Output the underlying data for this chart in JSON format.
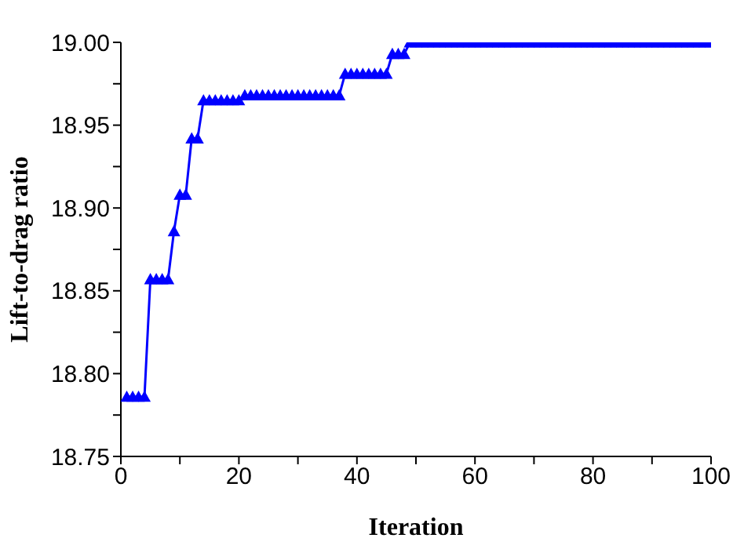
{
  "chart_data": {
    "type": "line",
    "xlabel": "Iteration",
    "ylabel": "Lift-to-drag ratio",
    "x": [
      1,
      2,
      3,
      4,
      5,
      6,
      7,
      8,
      9,
      10,
      11,
      12,
      13,
      14,
      15,
      16,
      17,
      18,
      19,
      20,
      21,
      22,
      23,
      24,
      25,
      26,
      27,
      28,
      29,
      30,
      31,
      32,
      33,
      34,
      35,
      36,
      37,
      38,
      39,
      40,
      41,
      42,
      43,
      44,
      45,
      46,
      47,
      48,
      49,
      50,
      51,
      52,
      53,
      54,
      55,
      56,
      57,
      58,
      59,
      60,
      61,
      62,
      63,
      64,
      65,
      66,
      67,
      68,
      69,
      70,
      71,
      72,
      73,
      74,
      75,
      76,
      77,
      78,
      79,
      80,
      81,
      82,
      83,
      84,
      85,
      86,
      87,
      88,
      89,
      90,
      91,
      92,
      93,
      94,
      95,
      96,
      97,
      98,
      99,
      100
    ],
    "series": [
      {
        "color": "#0000ff",
        "values": [
          18.786,
          18.786,
          18.786,
          18.786,
          18.857,
          18.857,
          18.857,
          18.857,
          18.886,
          18.908,
          18.908,
          18.942,
          18.942,
          18.965,
          18.965,
          18.965,
          18.965,
          18.965,
          18.965,
          18.965,
          18.968,
          18.968,
          18.968,
          18.968,
          18.968,
          18.968,
          18.968,
          18.968,
          18.968,
          18.968,
          18.968,
          18.968,
          18.968,
          18.968,
          18.968,
          18.968,
          18.968,
          18.981,
          18.981,
          18.981,
          18.981,
          18.981,
          18.981,
          18.981,
          18.981,
          18.993,
          18.993,
          18.993,
          19.0,
          19.0,
          19.0,
          19.0,
          19.0,
          19.0,
          19.0,
          19.0,
          19.0,
          19.0,
          19.0,
          19.0,
          19.0,
          19.0,
          19.0,
          19.0,
          19.0,
          19.0,
          19.0,
          19.0,
          19.0,
          19.0,
          19.0,
          19.0,
          19.0,
          19.0,
          19.0,
          19.0,
          19.0,
          19.0,
          19.0,
          19.0,
          19.0,
          19.0,
          19.0,
          19.0,
          19.0,
          19.0,
          19.0,
          19.0,
          19.0,
          19.0,
          19.0,
          19.0,
          19.0,
          19.0,
          19.0,
          19.0,
          19.0,
          19.0,
          19.0,
          19.0
        ]
      }
    ],
    "xlim": [
      0,
      100
    ],
    "xticks": [
      0,
      {
        "value": 10,
        "label": null
      },
      20,
      {
        "value": 30,
        "label": null
      },
      40,
      {
        "value": 50,
        "label": null
      },
      60,
      {
        "value": 70,
        "label": null
      },
      80,
      {
        "value": 90,
        "label": null
      },
      100
    ],
    "ylim": [
      18.75,
      19.0
    ],
    "yticks": [
      {
        "value": 18.75,
        "label": "18.75"
      },
      {
        "value": 18.775,
        "label": null
      },
      {
        "value": 18.8,
        "label": "18.80"
      },
      {
        "value": 18.825,
        "label": null
      },
      {
        "value": 18.85,
        "label": "18.85"
      },
      {
        "value": 18.875,
        "label": null
      },
      {
        "value": 18.9,
        "label": "18.90"
      },
      {
        "value": 18.925,
        "label": null
      },
      {
        "value": 18.95,
        "label": "18.95"
      },
      {
        "value": 18.975,
        "label": null
      },
      {
        "value": 19.0,
        "label": "19.00"
      }
    ],
    "grid": false,
    "legend": false,
    "marker": "triangle",
    "line_style": "solid"
  }
}
